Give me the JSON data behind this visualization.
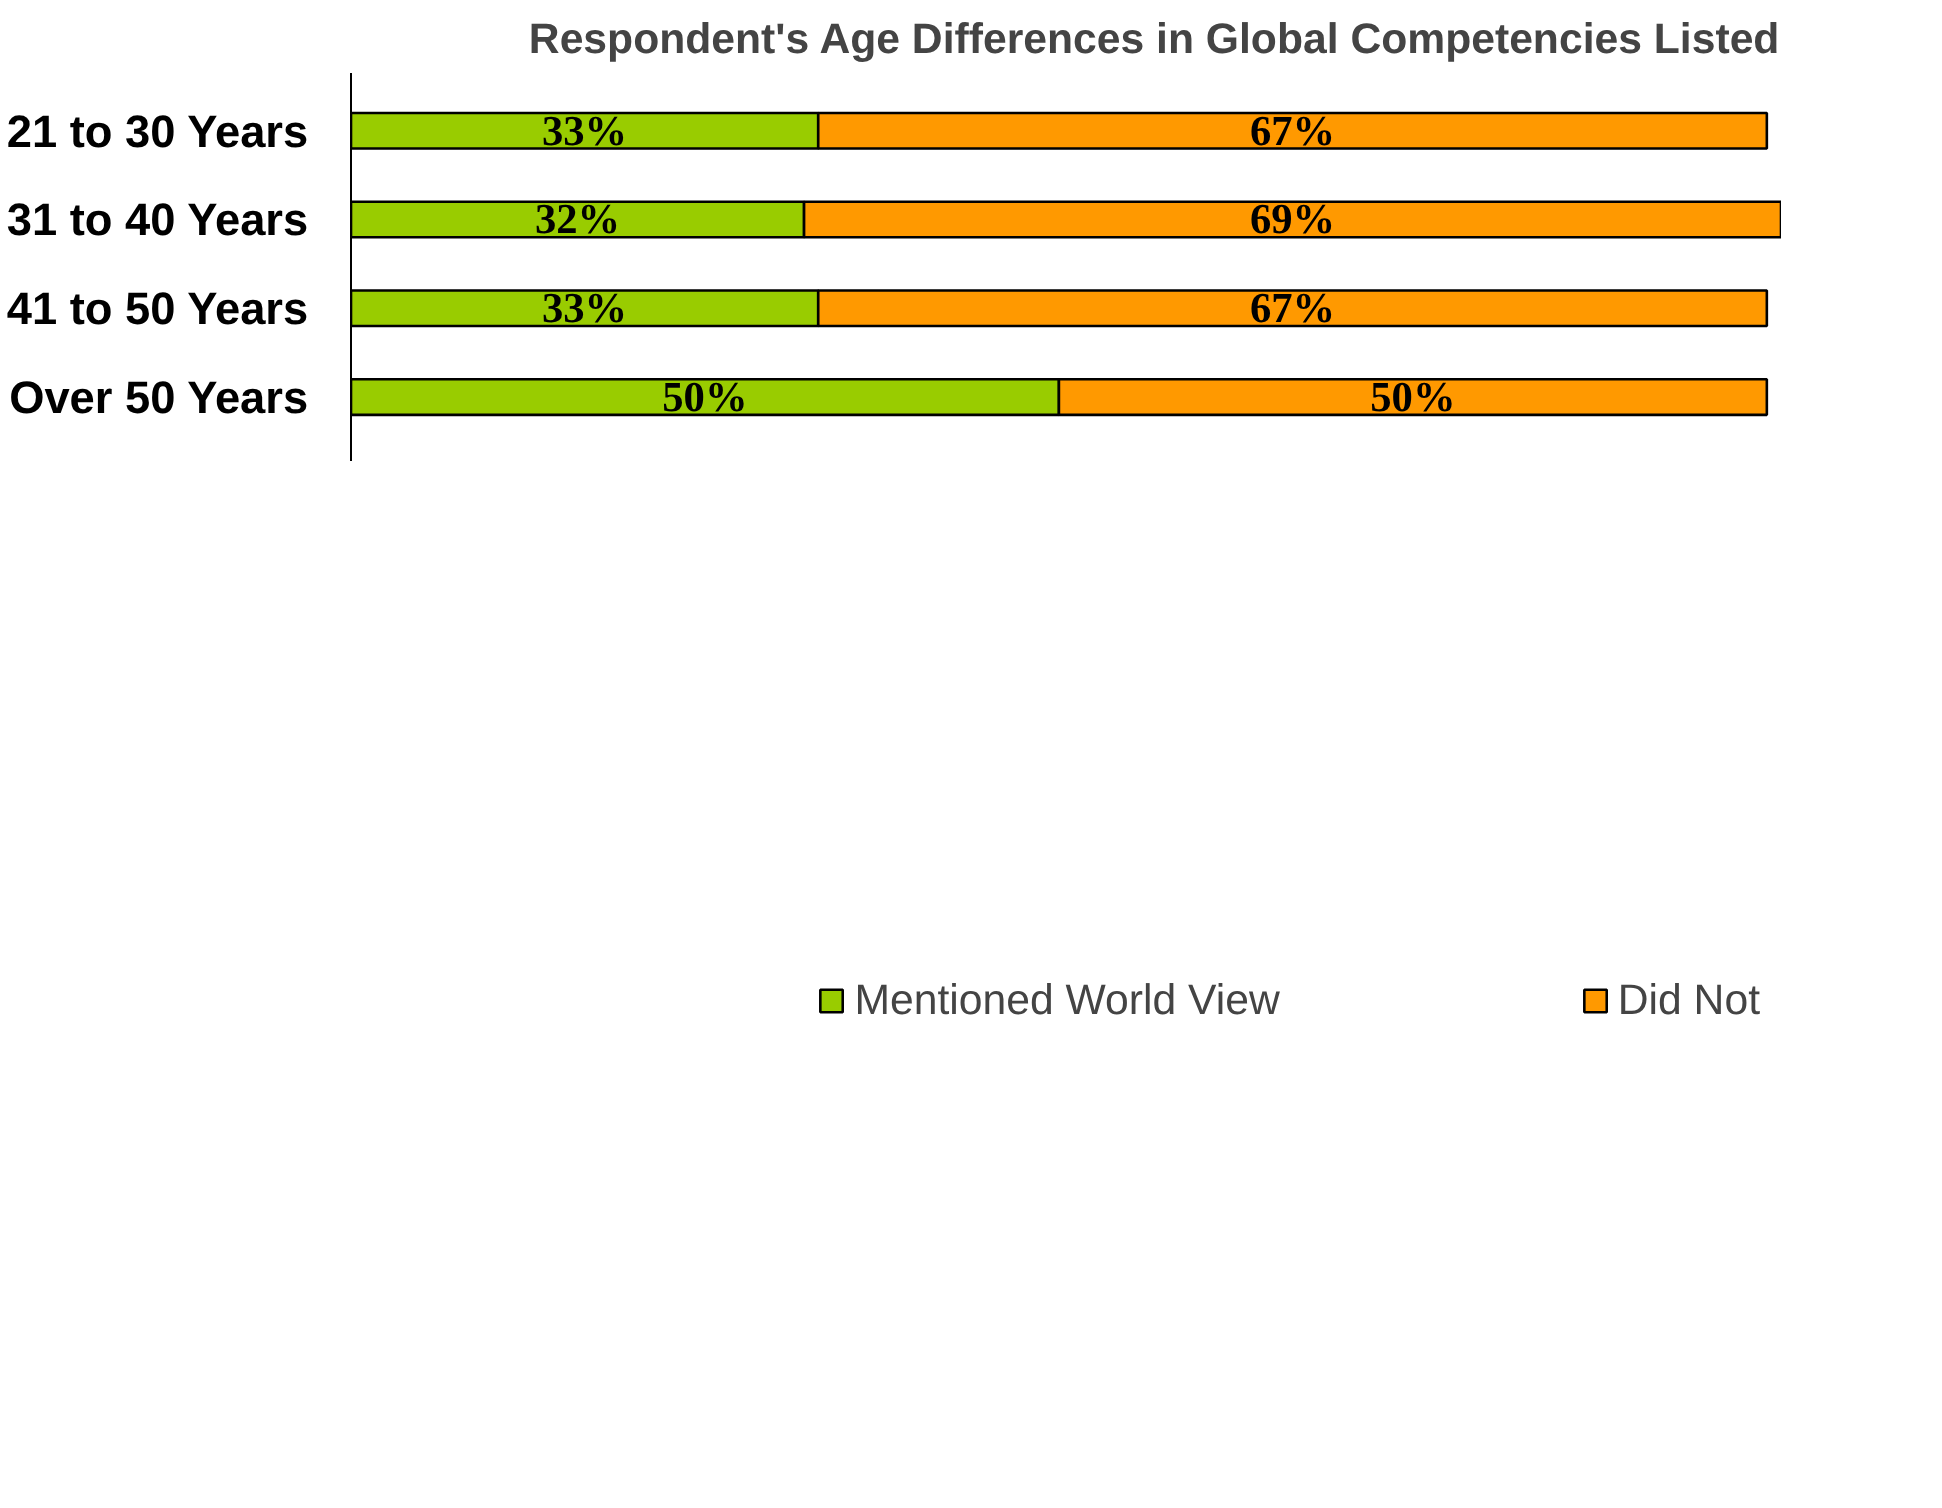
{
  "chart_data": {
    "type": "bar",
    "orientation": "horizontal",
    "stacked": true,
    "title": "Respondent's Age Differences in Global Competencies Listed",
    "categories": [
      "21 to 30 Years",
      "31 to 40 Years",
      "41 to 50 Years",
      "Over 50 Years"
    ],
    "series": [
      {
        "name": "Mentioned World View",
        "color": "#99cc00",
        "values": [
          33,
          32,
          33,
          50
        ],
        "value_labels": [
          "33%",
          "32%",
          "33%",
          "50%"
        ]
      },
      {
        "name": "Did Not",
        "color": "#ff9900",
        "values": [
          67,
          69,
          67,
          50
        ],
        "value_labels": [
          "67%",
          "69%",
          "67%",
          "50%"
        ]
      }
    ],
    "legend": "bottom",
    "grid": false,
    "tick_labels": "y"
  }
}
